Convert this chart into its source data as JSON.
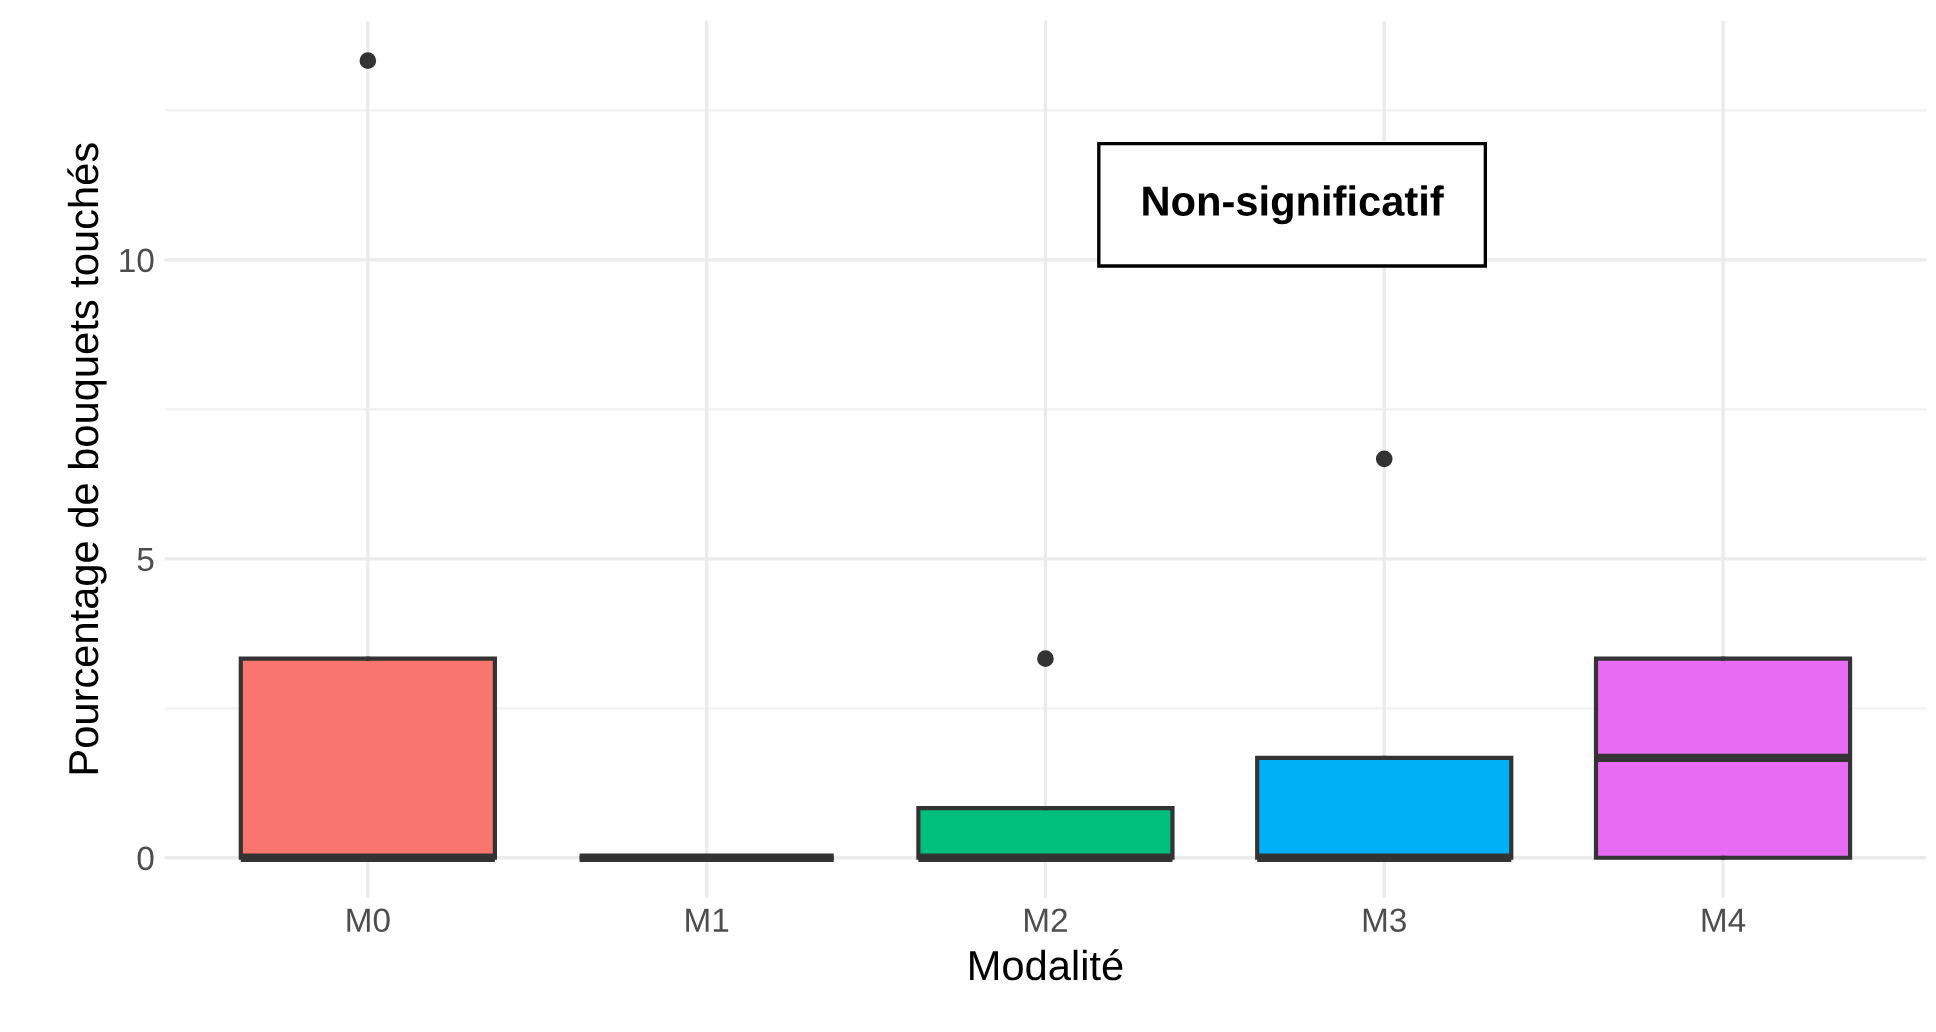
{
  "chart_data": {
    "type": "box",
    "xlabel": "Modalité",
    "ylabel": "Pourcentage de bouquets touchés",
    "categories": [
      "M0",
      "M1",
      "M2",
      "M3",
      "M4"
    ],
    "colors": [
      "#f8766d",
      "#333333",
      "#00bf7d",
      "#00b0f6",
      "#e76bf3"
    ],
    "boxes": [
      {
        "low": 0,
        "q1": 0,
        "median": 0,
        "q3": 3.33,
        "high": 3.33,
        "outliers": [
          13.33
        ]
      },
      {
        "low": 0,
        "q1": 0,
        "median": 0,
        "q3": 0,
        "high": 0
      },
      {
        "low": 0,
        "q1": 0,
        "median": 0,
        "q3": 0.83,
        "high": 0.83,
        "outliers": [
          3.33
        ]
      },
      {
        "low": 0,
        "q1": 0,
        "median": 0,
        "q3": 1.67,
        "high": 1.67,
        "outliers": [
          6.67
        ]
      },
      {
        "low": 0,
        "q1": 0,
        "median": 1.67,
        "q3": 3.33,
        "high": 3.33
      }
    ],
    "ylim": [
      -0.67,
      14.0
    ],
    "yticks": [
      0,
      5,
      10
    ],
    "grid": true,
    "annotations": [
      "Non-significatif"
    ]
  }
}
